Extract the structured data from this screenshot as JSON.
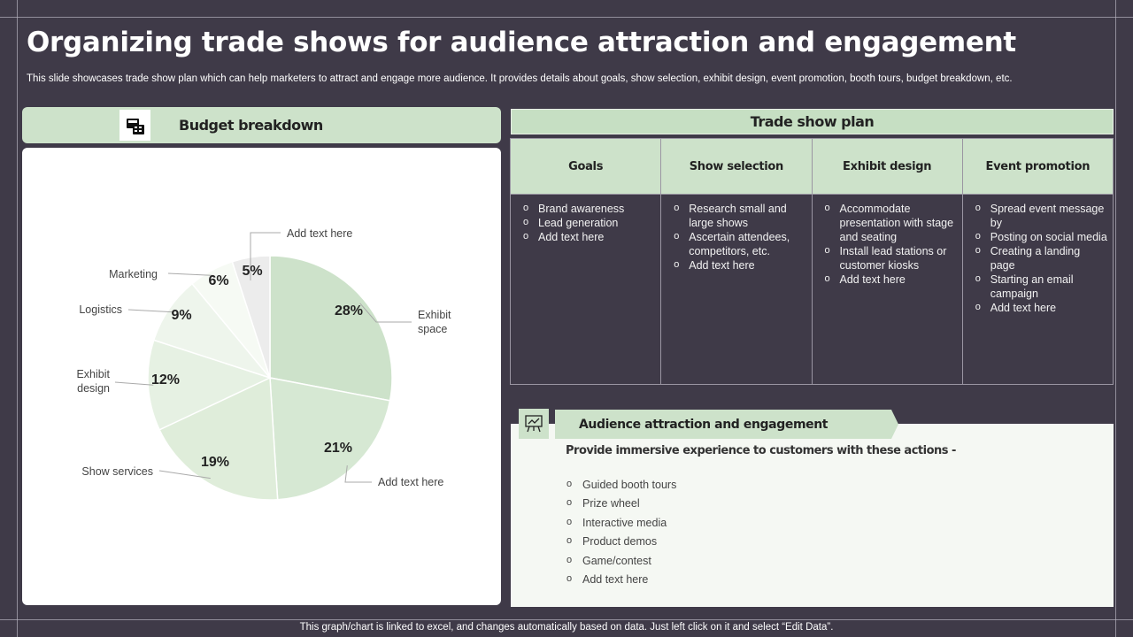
{
  "slide": {
    "title": "Organizing trade shows for audience attraction and engagement",
    "subtitle": "This slide showcases trade show plan which can help marketers to attract and engage more audience. It provides details about goals, show selection, exhibit design, event promotion, booth tours, budget breakdown, etc.",
    "footer": "This graph/chart is linked to excel,  and changes automatically based on data. Just left click on it and select “Edit Data”."
  },
  "budget": {
    "title": "Budget breakdown",
    "icon": "budget-calculator-icon"
  },
  "chart_data": {
    "type": "pie",
    "title": "",
    "labels": [
      "Exhibit space",
      "Add text here",
      "Show services",
      "Exhibit design",
      "Logistics",
      "Marketing",
      "Add text here"
    ],
    "values": [
      28,
      21,
      19,
      12,
      9,
      6,
      5
    ],
    "value_labels": [
      "28%",
      "21%",
      "19%",
      "12%",
      "9%",
      "6%",
      "5%"
    ],
    "colors": [
      "#cde2ca",
      "#d6e8d3",
      "#dfedda",
      "#e6f1e3",
      "#eef5ec",
      "#f6faf4",
      "#ececec"
    ],
    "start_angle": "12 o'clock, clockwise",
    "legend": "none (leader-line labels)"
  },
  "plan": {
    "title": "Trade show plan",
    "columns": [
      {
        "heading": "Goals",
        "items": [
          "Brand awareness",
          "Lead generation",
          "Add text here"
        ]
      },
      {
        "heading": "Show selection",
        "items": [
          "Research small and large shows",
          "Ascertain attendees, competitors, etc.",
          "Add text here"
        ]
      },
      {
        "heading": "Exhibit design",
        "items": [
          "Accommodate presentation with stage and seating",
          "Install lead stations or customer kiosks",
          "Add text here"
        ]
      },
      {
        "heading": "Event promotion",
        "items": [
          "Spread event message by",
          "Posting on social media",
          "Creating a landing page",
          "Starting an email campaign",
          "Add text here"
        ]
      }
    ]
  },
  "audience": {
    "title": "Audience attraction and engagement",
    "icon": "presentation-board-icon",
    "intro": "Provide immersive experience to customers with these actions -",
    "items": [
      "Guided booth tours",
      "Prize wheel",
      "Interactive  media",
      "Product demos",
      "Game/contest",
      "Add text here"
    ]
  }
}
